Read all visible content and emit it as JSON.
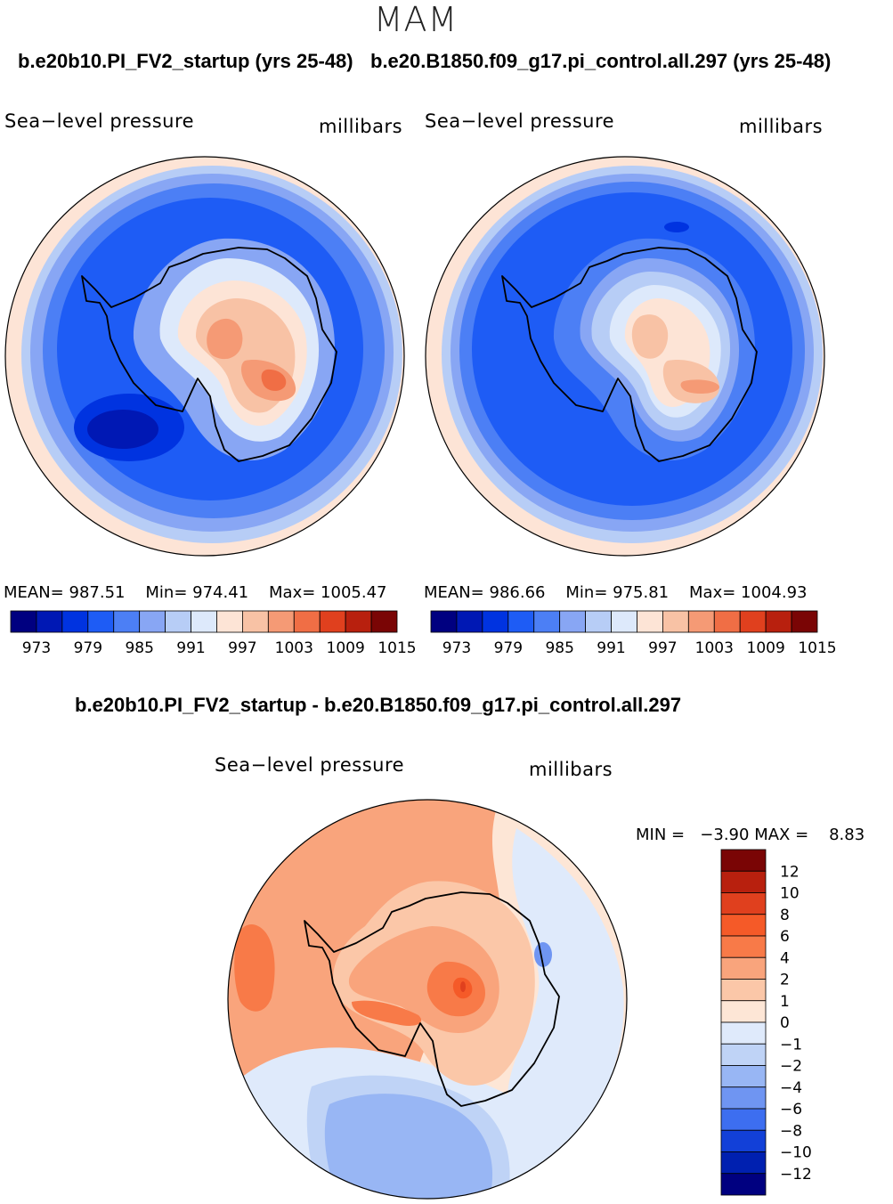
{
  "season": "MAM",
  "chart_data": [
    {
      "type": "heatmap",
      "title": "b.e20b10.PI_FV2_startup (yrs 25-48)",
      "variable": "Sea−level pressure",
      "units": "millibars",
      "projection": "south polar stereographic",
      "stats": {
        "mean_label": "MEAN=",
        "mean": "987.51",
        "min_label": "Min=",
        "min": "974.41",
        "max_label": "Max=",
        "max": "1005.47"
      },
      "colorbar": {
        "levels": [
          973,
          976,
          979,
          982,
          985,
          988,
          991,
          994,
          997,
          1000,
          1003,
          1006,
          1009,
          1012,
          1015
        ],
        "tick_labels": [
          "973",
          "979",
          "985",
          "991",
          "997",
          "1003",
          "1009",
          "1015"
        ],
        "colors": [
          "#000080",
          "#0018b4",
          "#0033e0",
          "#1e5cf5",
          "#4c7ff5",
          "#88a6f4",
          "#b7cdf6",
          "#dde9fb",
          "#fde4d6",
          "#f8c2a5",
          "#f59a75",
          "#f06e45",
          "#e0401e",
          "#b8200e",
          "#7a0505"
        ]
      }
    },
    {
      "type": "heatmap",
      "title": "b.e20.B1850.f09_g17.pi_control.all.297 (yrs 25-48)",
      "variable": "Sea−level pressure",
      "units": "millibars",
      "projection": "south polar stereographic",
      "stats": {
        "mean_label": "MEAN=",
        "mean": "986.66",
        "min_label": "Min=",
        "min": "975.81",
        "max_label": "Max=",
        "max": "1004.93"
      },
      "colorbar": {
        "levels": [
          973,
          976,
          979,
          982,
          985,
          988,
          991,
          994,
          997,
          1000,
          1003,
          1006,
          1009,
          1012,
          1015
        ],
        "tick_labels": [
          "973",
          "979",
          "985",
          "991",
          "997",
          "1003",
          "1009",
          "1015"
        ],
        "colors": [
          "#000080",
          "#0018b4",
          "#0033e0",
          "#1e5cf5",
          "#4c7ff5",
          "#88a6f4",
          "#b7cdf6",
          "#dde9fb",
          "#fde4d6",
          "#f8c2a5",
          "#f59a75",
          "#f06e45",
          "#e0401e",
          "#b8200e",
          "#7a0505"
        ]
      }
    },
    {
      "type": "heatmap",
      "title": "b.e20b10.PI_FV2_startup - b.e20.B1850.f09_g17.pi_control.all.297",
      "variable": "Sea−level pressure",
      "units": "millibars",
      "projection": "south polar stereographic",
      "stats": {
        "min_label": "MIN =",
        "min": "−3.90",
        "max_label": "MAX =",
        "max": "8.83"
      },
      "colorbar": {
        "tick_labels": [
          "12",
          "10",
          "8",
          "6",
          "4",
          "2",
          "1",
          "0",
          "−1",
          "−2",
          "−4",
          "−6",
          "−8",
          "−10",
          "−12"
        ],
        "colors": [
          "#7a0505",
          "#b8200e",
          "#e0401e",
          "#f55a28",
          "#f87a48",
          "#f9a47c",
          "#fbc7a8",
          "#fde6d6",
          "#dfeafb",
          "#bfd3f6",
          "#98b6f4",
          "#6f95f2",
          "#3d6ef0",
          "#1240d8",
          "#0020b0",
          "#000080"
        ]
      }
    }
  ]
}
